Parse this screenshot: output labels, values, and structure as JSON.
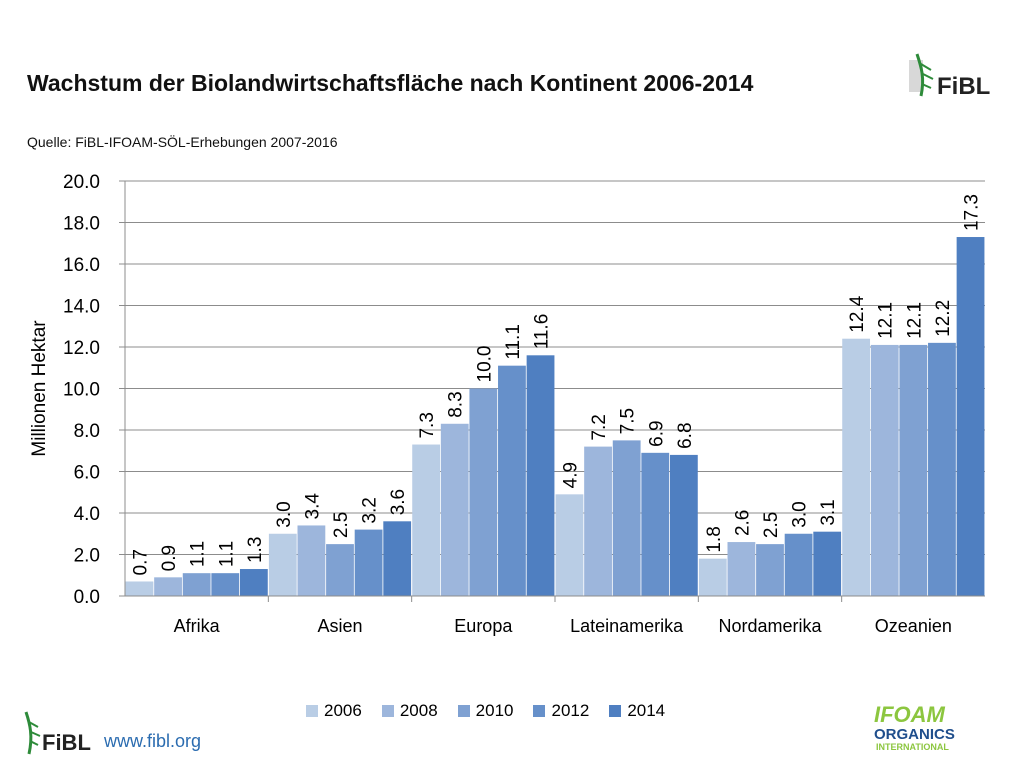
{
  "chart_data": {
    "type": "bar",
    "title": "Wachstum der Biolandwirtschaftsfläche  nach Kontinent  2006-2014",
    "subtitle": "Quelle: FiBL-IFOAM-SÖL-Erhebungen 2007-2016",
    "ylabel": "Millionen Hektar",
    "xlabel": "",
    "ylim": [
      0,
      20
    ],
    "yticks": [
      "0.0",
      "2.0",
      "4.0",
      "6.0",
      "8.0",
      "10.0",
      "12.0",
      "14.0",
      "16.0",
      "18.0",
      "20.0"
    ],
    "grid": true,
    "legend_position": "bottom",
    "categories": [
      "Afrika",
      "Asien",
      "Europa",
      "Lateinamerika",
      "Nordamerika",
      "Ozeanien"
    ],
    "series": [
      {
        "name": "2006",
        "color": "#b9cde5",
        "values": [
          0.7,
          3.0,
          7.3,
          4.9,
          1.8,
          12.4
        ],
        "labels": [
          "0.7",
          "3.0",
          "7.3",
          "4.9",
          "1.8",
          "12.4"
        ]
      },
      {
        "name": "2008",
        "color": "#9db6dc",
        "values": [
          0.9,
          3.4,
          8.3,
          7.2,
          2.6,
          12.1
        ],
        "labels": [
          "0.9",
          "3.4",
          "8.3",
          "7.2",
          "2.6",
          "12.1"
        ]
      },
      {
        "name": "2010",
        "color": "#7fa1d2",
        "values": [
          1.1,
          2.5,
          10.0,
          7.5,
          2.5,
          12.1
        ],
        "labels": [
          "1.1",
          "2.5",
          "10.0",
          "7.5",
          "2.5",
          "12.1"
        ]
      },
      {
        "name": "2012",
        "color": "#6690ca",
        "values": [
          1.1,
          3.2,
          11.1,
          6.9,
          3.0,
          12.2
        ],
        "labels": [
          "1.1",
          "3.2",
          "11.1",
          "6.9",
          "3.0",
          "12.2"
        ]
      },
      {
        "name": "2014",
        "color": "#4f7fc1",
        "values": [
          1.3,
          3.6,
          11.6,
          6.8,
          3.1,
          17.3
        ],
        "labels": [
          "1.3",
          "3.6",
          "11.6",
          "6.8",
          "3.1",
          "17.3"
        ]
      }
    ]
  },
  "branding": {
    "url": "www.fibl.org",
    "fibl_logo_text": "FiBL",
    "ifoam_logo_text": "IFOAM",
    "ifoam_logo_sub": "ORGANICS",
    "ifoam_logo_sub2": "INTERNATIONAL"
  }
}
